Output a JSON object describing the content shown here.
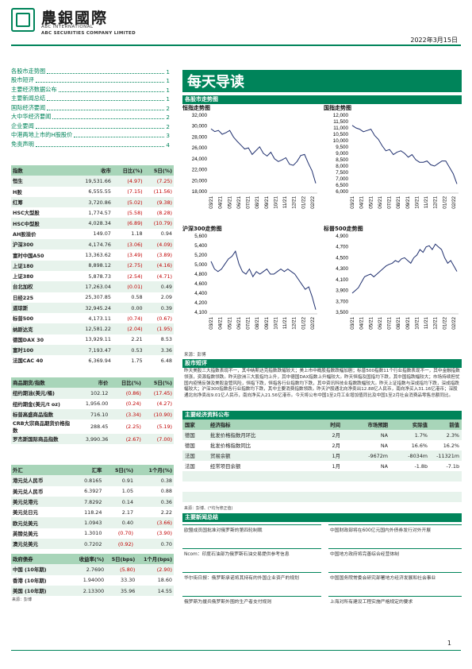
{
  "header": {
    "brand_cn": "農銀國際",
    "brand_en1": "ABC INTERNATIONAL",
    "brand_en2": "ABC SECURITIES COMPANY LIMITED",
    "date": "2022年3月15日"
  },
  "toc": [
    {
      "label": "各股市走势图",
      "page": "1"
    },
    {
      "label": "股市短评",
      "page": "1"
    },
    {
      "label": "主要经济数据公布",
      "page": "1"
    },
    {
      "label": "主要新闻总结",
      "page": "1"
    },
    {
      "label": "国际经济要闻",
      "page": "2"
    },
    {
      "label": "大中华经济要闻",
      "page": "2"
    },
    {
      "label": "企业要闻",
      "page": "2"
    },
    {
      "label": "中港两地上市的H股股价",
      "page": "3"
    },
    {
      "label": "免责声明",
      "page": "4"
    }
  ],
  "title": "每天导读",
  "charts_section": "各股市走势图",
  "charts": [
    {
      "title": "恒指走势图",
      "yticks": [
        "32,000",
        "30,000",
        "28,000",
        "26,000",
        "24,000",
        "22,000",
        "20,000",
        "18,000"
      ],
      "ylim": [
        18000,
        32000
      ]
    },
    {
      "title": "国指走势图",
      "yticks": [
        "12,000",
        "11,500",
        "11,000",
        "10,500",
        "10,000",
        "9,500",
        "9,000",
        "8,500",
        "8,000",
        "7,500",
        "7,000",
        "6,500",
        "6,000"
      ],
      "ylim": [
        6000,
        12000
      ]
    },
    {
      "title": "沪深300走势图",
      "yticks": [
        "5,600",
        "5,400",
        "5,200",
        "5,000",
        "4,800",
        "4,600",
        "4,400",
        "4,200",
        "4,100"
      ],
      "ylim": [
        4100,
        5600
      ]
    },
    {
      "title": "标普500走势图",
      "yticks": [
        "4,900",
        "4,700",
        "4,500",
        "4,300",
        "4,100",
        "3,900",
        "3,700",
        "3,500"
      ],
      "ylim": [
        3500,
        4900
      ]
    }
  ],
  "chart_xticks": [
    "03/21",
    "04/21",
    "05/21",
    "06/21",
    "07/21",
    "08/21",
    "09/21",
    "10/21",
    "11/21",
    "12/21",
    "01/22",
    "02/22"
  ],
  "chart_source": "来源：彭博",
  "chart_data": [
    {
      "type": "line",
      "title": "恒指走势图",
      "ylim": [
        18000,
        32000
      ],
      "values": [
        29500,
        29000,
        29200,
        28500,
        28800,
        29200,
        28000,
        27200,
        26500,
        25800,
        26000,
        24800,
        25500,
        26200,
        25000,
        24500,
        25200,
        24000,
        23500,
        23800,
        24200,
        23000,
        22800,
        23500,
        24600,
        24800,
        23200,
        21800,
        19500
      ]
    },
    {
      "type": "line",
      "title": "国指走势图",
      "ylim": [
        6000,
        12000
      ],
      "values": [
        11200,
        11000,
        10900,
        10700,
        10800,
        10900,
        10400,
        10100,
        9600,
        9200,
        9300,
        8900,
        9100,
        9200,
        9000,
        8700,
        8900,
        8500,
        8300,
        8300,
        8400,
        8100,
        8000,
        8200,
        8400,
        8400,
        7900,
        7400,
        6600
      ]
    },
    {
      "type": "line",
      "title": "沪深300走势图",
      "ylim": [
        4100,
        5600
      ],
      "values": [
        5100,
        4950,
        4900,
        4950,
        5050,
        5150,
        5200,
        5300,
        5050,
        4900,
        4850,
        4950,
        4800,
        4900,
        4850,
        4900,
        4950,
        4850,
        4850,
        4900,
        4950,
        4900,
        4950,
        4900,
        4850,
        4750,
        4650,
        4550,
        4600,
        4400,
        4150
      ]
    },
    {
      "type": "line",
      "title": "标普500走势图",
      "ylim": [
        3500,
        4900
      ],
      "values": [
        3850,
        3900,
        3950,
        4050,
        4150,
        4180,
        4200,
        4150,
        4200,
        4250,
        4300,
        4350,
        4380,
        4400,
        4450,
        4420,
        4480,
        4500,
        4450,
        4400,
        4500,
        4550,
        4650,
        4600,
        4700,
        4720,
        4650,
        4750,
        4700,
        4650,
        4500,
        4400,
        4450,
        4350,
        4250
      ]
    }
  ],
  "index_table": {
    "headers": [
      "指数",
      "收市",
      "日比(%)",
      "5日(%)"
    ],
    "rows": [
      [
        "恒生",
        "19,531.66",
        "(4.97)",
        "(7.25)"
      ],
      [
        "H股",
        "6,555.55",
        "(7.15)",
        "(11.56)"
      ],
      [
        "红筹",
        "3,720.86",
        "(5.02)",
        "(9.38)"
      ],
      [
        "HSC大型股",
        "1,774.57",
        "(5.58)",
        "(8.28)"
      ],
      [
        "HSC中型股",
        "4,028.34",
        "(6.89)",
        "(10.79)"
      ],
      [
        "AH股溢价",
        "149.07",
        "1.18",
        "0.94"
      ],
      [
        "沪深300",
        "4,174.76",
        "(3.06)",
        "(4.09)"
      ],
      [
        "富时中国A50",
        "13,363.62",
        "(3.49)",
        "(3.89)"
      ],
      [
        "上证180",
        "8,898.12",
        "(2.75)",
        "(4.16)"
      ],
      [
        "上证380",
        "5,878.73",
        "(2.54)",
        "(4.71)"
      ],
      [
        "台北加权",
        "17,263.04",
        "(0.01)",
        "0.49"
      ],
      [
        "日经225",
        "25,307.85",
        "0.58",
        "2.09"
      ],
      [
        "道琼斯",
        "32,945.24",
        "0.00",
        "0.39"
      ],
      [
        "标普500",
        "4,173.11",
        "(0.74)",
        "(0.67)"
      ],
      [
        "纳斯达克",
        "12,581.22",
        "(2.04)",
        "(1.95)"
      ],
      [
        "德国DAX 30",
        "13,929.11",
        "2.21",
        "8.53"
      ],
      [
        "富时100",
        "7,193.47",
        "0.53",
        "3.36"
      ],
      [
        "法国CAC 40",
        "6,369.94",
        "1.75",
        "6.48"
      ]
    ]
  },
  "commodity_table": {
    "headers": [
      "商品期货/指数",
      "市价",
      "日比(%)",
      "5日(%)"
    ],
    "rows": [
      [
        "纽约期油(美元/桶)",
        "102.12",
        "(0.86)",
        "(17.45)"
      ],
      [
        "纽约期金(美元/t oz)",
        "1,956.00",
        "(0.24)",
        "(4.27)"
      ],
      [
        "标普高盛商品指数",
        "716.10",
        "(3.34)",
        "(10.90)"
      ],
      [
        "CRB大宗商品期货价格指数",
        "288.45",
        "(2.25)",
        "(5.19)"
      ],
      [
        "罗杰斯国际商品指数",
        "3,990.36",
        "(2.67)",
        "(7.00)"
      ]
    ]
  },
  "fx_table": {
    "headers": [
      "外汇",
      "汇率",
      "5日(%)",
      "1个月(%)"
    ],
    "rows": [
      [
        "港元兑人民币",
        "0.8165",
        "0.91",
        "0.38"
      ],
      [
        "美元兑人民币",
        "6.3927",
        "1.05",
        "0.88"
      ],
      [
        "美元兑港元",
        "7.8292",
        "0.14",
        "0.36"
      ],
      [
        "美元兑日元",
        "118.24",
        "2.17",
        "2.22"
      ],
      [
        "欧元兑美元",
        "1.0943",
        "0.40",
        "(3.66)"
      ],
      [
        "英镑兑美元",
        "1.3010",
        "(0.70)",
        "(3.90)"
      ],
      [
        "澳元兑美元",
        "0.7202",
        "(0.92)",
        "0.70"
      ]
    ]
  },
  "bond_table": {
    "headers": [
      "政府债券",
      "收益率(%)",
      "5日(bps)",
      "1个月(bps)"
    ],
    "rows": [
      [
        "中国 (10年期)",
        "2.7690",
        "(5.80)",
        "(2.90)"
      ],
      [
        "香港 (10年期)",
        "1.94000",
        "33.30",
        "18.60"
      ],
      [
        "美国 (10年期)",
        "2.13300",
        "35.96",
        "14.55"
      ]
    ],
    "source": "来源：彭博"
  },
  "commentary": {
    "title": "股市短评",
    "text": "昨天美股三大指数表现不一，其中纳斯达克指数跌幅较大；美上市中概股指数跌幅加剧；标普500指数11个行业指数表现不一，其中金融指数领涨，资源指数领跌。昨天欧洲三大股指均上升，其中德国DAX指数上升幅较大。昨天恒指及国指均下跌，其中国指跌幅较大；市场持续担忧国内疫情反弹及美股监管风险，恒指下跌，恒指各行业指数均下跌，其中资讯科技业指数跌幅较大。昨天上证指数与深成指均下跌，深成指跌幅较大；沪深300指数各行业指数均下跌，其中主要消费指数领跌。昨天沪股通北向净卖出12.88亿人民币，南向净买入31.16亿港币；深股通北向净卖出9.01亿人民币，南向净买入21.56亿港币。今天将公布中国1至2月工业增加值同比及中国1至2月社会消费品零售总额同比。"
  },
  "econ": {
    "title": "主要经济资料公布",
    "headers": [
      "国家",
      "经济指标",
      "时间",
      "市场预期",
      "实际值",
      "前值"
    ],
    "rows": [
      [
        "德国",
        "批发价格指数月环比",
        "2月",
        "NA",
        "1.7%",
        "2.3%"
      ],
      [
        "德国",
        "批发价格指数同比",
        "2月",
        "NA",
        "16.6%",
        "16.2%"
      ],
      [
        "法国",
        "贸易余额",
        "1月",
        "-9672m",
        "-8034m",
        "-11321m"
      ],
      [
        "法国",
        "经常项目余额",
        "1月",
        "NA",
        "-1.8b",
        "-7.1b"
      ]
    ],
    "source": "来源：彭博、(*均为修正值)"
  },
  "news": {
    "title": "主要新闻总结",
    "left": [
      "欧盟成员国批准对俄罗斯的第四轮制裁",
      "Ncom：印度石油部为俄罗斯石油交易提供参考信息",
      "华尔街日报：俄罗斯承诺将其持有的外国企业资产的规划",
      "俄罗斯为援兵俄罗斯外围的生产者支付规则"
    ],
    "right": [
      "中国财政部将在600亿元国内外债券发行对外开展",
      "中国地方政府将完善综合经营体制",
      "中国国务院常委会研究部署地方经济发展和社会事业",
      "上海对所有建设工程实施严格规定的要求"
    ]
  },
  "page_number": "1"
}
